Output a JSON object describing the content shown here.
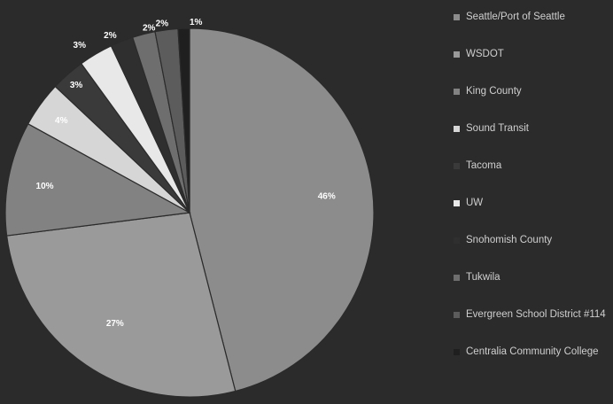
{
  "chart_data": {
    "type": "pie",
    "title": "",
    "legend_position": "right",
    "slices": [
      {
        "name": "Seattle/Port of Seattle",
        "value": 46,
        "label": "46%",
        "color": "#8c8c8c"
      },
      {
        "name": "WSDOT",
        "value": 27,
        "label": "27%",
        "color": "#9a9a9a"
      },
      {
        "name": "King County",
        "value": 10,
        "label": "10%",
        "color": "#828282"
      },
      {
        "name": "Sound Transit",
        "value": 4,
        "label": "4%",
        "color": "#d6d6d6"
      },
      {
        "name": "Tacoma",
        "value": 3,
        "label": "3%",
        "color": "#3a3a3a"
      },
      {
        "name": "UW",
        "value": 3,
        "label": "3%",
        "color": "#e8e8e8"
      },
      {
        "name": "Snohomish County",
        "value": 2,
        "label": "2%",
        "color": "#2f2f2f"
      },
      {
        "name": "Tukwila",
        "value": 2,
        "label": "2%",
        "color": "#6e6e6e"
      },
      {
        "name": "Evergreen School District #114",
        "value": 2,
        "label": "2%",
        "color": "#5c5c5c"
      },
      {
        "name": "Centralia Community College",
        "value": 1,
        "label": "1%",
        "color": "#1f1f1f"
      }
    ]
  }
}
